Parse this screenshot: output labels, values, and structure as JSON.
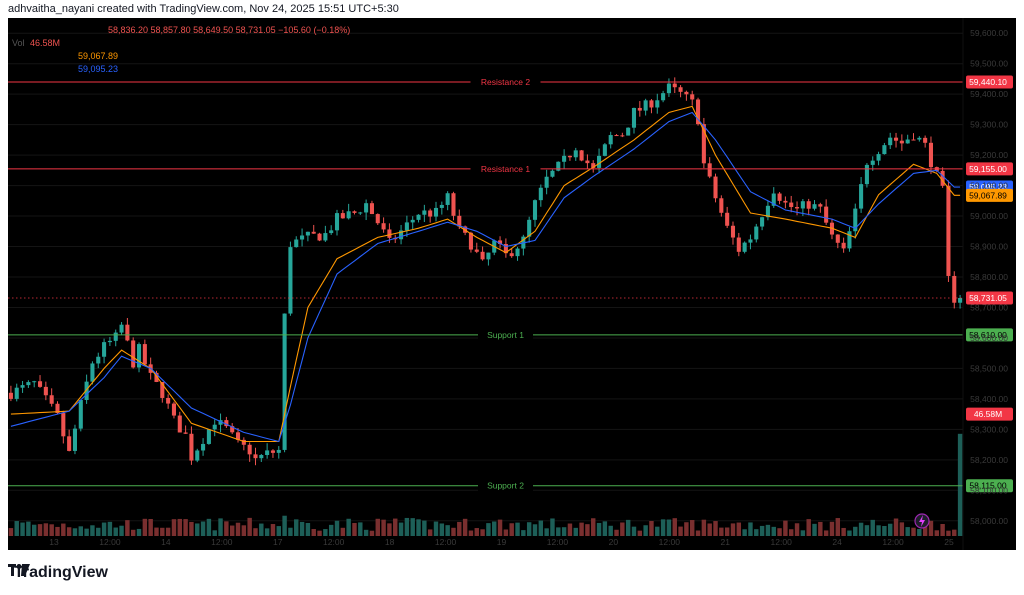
{
  "credit": "adhvaitha_nayani created with TradingView.com, Nov 24, 2025 15:51 UTC+5:30",
  "brand": "TradingView",
  "legend": {
    "ohlc": "58,836.20  58,857.80  58,649.50  58,731.05  −105.60 (−0.18%)",
    "vol_label": "Vol",
    "vol_value": "46.58M",
    "ema1_value": "59,067.89",
    "ema2_value": "59,095.23"
  },
  "colors": {
    "up": "#26a69a",
    "down": "#ef5350",
    "resistance": "#f23645",
    "support": "#4caf50",
    "ema_fast": "#ff9800",
    "ema_slow": "#2962ff"
  },
  "chart_data": {
    "type": "candlestick",
    "ylim": [
      57950,
      59650
    ],
    "y_ticks": [
      58000,
      58100,
      58200,
      58300,
      58400,
      58500,
      58600,
      58700,
      58800,
      58900,
      59000,
      59100,
      59200,
      59300,
      59400,
      59500,
      59600
    ],
    "y_tick_labels": [
      "58,000.00",
      "58,100.00",
      "58,200.00",
      "58,300.00",
      "58,400.00",
      "58,500.00",
      "58,600.00",
      "58,700.00",
      "58,800.00",
      "58,900.00",
      "59,000.00",
      "59,100.00",
      "59,200.00",
      "59,300.00",
      "59,400.00",
      "59,500.00",
      "59,600.00"
    ],
    "x_tick_labels": [
      "13",
      "12:00",
      "14",
      "12:00",
      "17",
      "12:00",
      "18",
      "12:00",
      "19",
      "12:00",
      "20",
      "12:00",
      "21",
      "12:00",
      "24",
      "12:00",
      "25"
    ],
    "levels": [
      {
        "name": "Resistance 2",
        "value": 59440.1,
        "label": "59,440.10",
        "kind": "resistance"
      },
      {
        "name": "Resistance 1",
        "value": 59155.0,
        "label": "59,155.00",
        "kind": "resistance"
      },
      {
        "name": "Support 1",
        "value": 58610.0,
        "label": "58,610.00",
        "kind": "support"
      },
      {
        "name": "Support 2",
        "value": 58115.0,
        "label": "58,115.00",
        "kind": "support"
      }
    ],
    "price_labels": [
      {
        "value": 59095.23,
        "label": "59,095.23",
        "kind": "ema_slow"
      },
      {
        "value": 59067.89,
        "label": "59,067.89",
        "kind": "ema_fast"
      },
      {
        "value": 58731.05,
        "label": "58,731.05",
        "kind": "last"
      },
      {
        "value": 58350.0,
        "label": "46.58M",
        "kind": "volume"
      }
    ],
    "last_price": 58731.05,
    "close_path": [
      [
        0,
        58420
      ],
      [
        4,
        58450
      ],
      [
        8,
        58340
      ],
      [
        10,
        58220
      ],
      [
        12,
        58380
      ],
      [
        14,
        58520
      ],
      [
        16,
        58570
      ],
      [
        18,
        58600
      ],
      [
        19,
        58640
      ],
      [
        21,
        58520
      ],
      [
        22,
        58560
      ],
      [
        24,
        58470
      ],
      [
        26,
        58420
      ],
      [
        28,
        58330
      ],
      [
        30,
        58280
      ],
      [
        31,
        58210
      ],
      [
        33,
        58270
      ],
      [
        35,
        58330
      ],
      [
        37,
        58300
      ],
      [
        39,
        58250
      ],
      [
        41,
        58230
      ],
      [
        42,
        58200
      ],
      [
        44,
        58220
      ],
      [
        46,
        58230
      ],
      [
        47,
        58670
      ],
      [
        48,
        58910
      ],
      [
        51,
        58930
      ],
      [
        54,
        58940
      ],
      [
        56,
        58990
      ],
      [
        59,
        59010
      ],
      [
        61,
        59040
      ],
      [
        63,
        58980
      ],
      [
        65,
        58910
      ],
      [
        67,
        58950
      ],
      [
        70,
        59010
      ],
      [
        73,
        59010
      ],
      [
        75,
        59060
      ],
      [
        77,
        58950
      ],
      [
        79,
        58910
      ],
      [
        81,
        58840
      ],
      [
        83,
        58910
      ],
      [
        85,
        58870
      ],
      [
        88,
        58920
      ],
      [
        90,
        59040
      ],
      [
        92,
        59120
      ],
      [
        95,
        59180
      ],
      [
        97,
        59230
      ],
      [
        98,
        59200
      ],
      [
        100,
        59150
      ],
      [
        103,
        59260
      ],
      [
        105,
        59270
      ],
      [
        107,
        59340
      ],
      [
        109,
        59360
      ],
      [
        111,
        59390
      ],
      [
        113,
        59420
      ],
      [
        115,
        59400
      ],
      [
        117,
        59370
      ],
      [
        118,
        59320
      ],
      [
        119,
        59170
      ],
      [
        121,
        59060
      ],
      [
        123,
        58960
      ],
      [
        125,
        58890
      ],
      [
        127,
        58930
      ],
      [
        129,
        59010
      ],
      [
        131,
        59090
      ],
      [
        133,
        59040
      ],
      [
        135,
        59020
      ],
      [
        137,
        59040
      ],
      [
        139,
        59020
      ],
      [
        141,
        58930
      ],
      [
        143,
        58880
      ],
      [
        145,
        59010
      ],
      [
        147,
        59180
      ],
      [
        149,
        59220
      ],
      [
        151,
        59260
      ],
      [
        153,
        59240
      ],
      [
        155,
        59270
      ],
      [
        157,
        59230
      ],
      [
        159,
        59130
      ],
      [
        160,
        59080
      ],
      [
        161,
        58790
      ],
      [
        162,
        58731
      ]
    ],
    "ema_fast_path": [
      [
        0,
        58350
      ],
      [
        10,
        58360
      ],
      [
        16,
        58500
      ],
      [
        19,
        58560
      ],
      [
        24,
        58500
      ],
      [
        31,
        58320
      ],
      [
        40,
        58260
      ],
      [
        46,
        58260
      ],
      [
        48,
        58440
      ],
      [
        51,
        58700
      ],
      [
        56,
        58860
      ],
      [
        63,
        58930
      ],
      [
        70,
        58960
      ],
      [
        75,
        58990
      ],
      [
        80,
        58930
      ],
      [
        85,
        58880
      ],
      [
        90,
        58950
      ],
      [
        95,
        59100
      ],
      [
        100,
        59160
      ],
      [
        107,
        59250
      ],
      [
        113,
        59340
      ],
      [
        117,
        59360
      ],
      [
        121,
        59200
      ],
      [
        127,
        59010
      ],
      [
        133,
        58990
      ],
      [
        141,
        58960
      ],
      [
        145,
        58930
      ],
      [
        149,
        59070
      ],
      [
        155,
        59170
      ],
      [
        159,
        59140
      ],
      [
        162,
        59068
      ]
    ],
    "ema_slow_path": [
      [
        0,
        58310
      ],
      [
        10,
        58360
      ],
      [
        16,
        58470
      ],
      [
        19,
        58540
      ],
      [
        24,
        58500
      ],
      [
        31,
        58370
      ],
      [
        40,
        58290
      ],
      [
        46,
        58260
      ],
      [
        48,
        58380
      ],
      [
        51,
        58600
      ],
      [
        56,
        58810
      ],
      [
        63,
        58910
      ],
      [
        70,
        58950
      ],
      [
        75,
        58980
      ],
      [
        80,
        58950
      ],
      [
        85,
        58900
      ],
      [
        90,
        58920
      ],
      [
        95,
        59060
      ],
      [
        100,
        59130
      ],
      [
        107,
        59220
      ],
      [
        113,
        59310
      ],
      [
        117,
        59340
      ],
      [
        121,
        59250
      ],
      [
        127,
        59080
      ],
      [
        133,
        59020
      ],
      [
        141,
        58990
      ],
      [
        145,
        58960
      ],
      [
        149,
        59040
      ],
      [
        155,
        59140
      ],
      [
        159,
        59150
      ],
      [
        162,
        59095
      ]
    ],
    "volume_spikes": [
      [
        7,
        0.45
      ],
      [
        47,
        0.78
      ],
      [
        49,
        0.64
      ],
      [
        66,
        0.67
      ],
      [
        84,
        0.63
      ],
      [
        106,
        0.62
      ],
      [
        163,
        3.93
      ]
    ]
  }
}
